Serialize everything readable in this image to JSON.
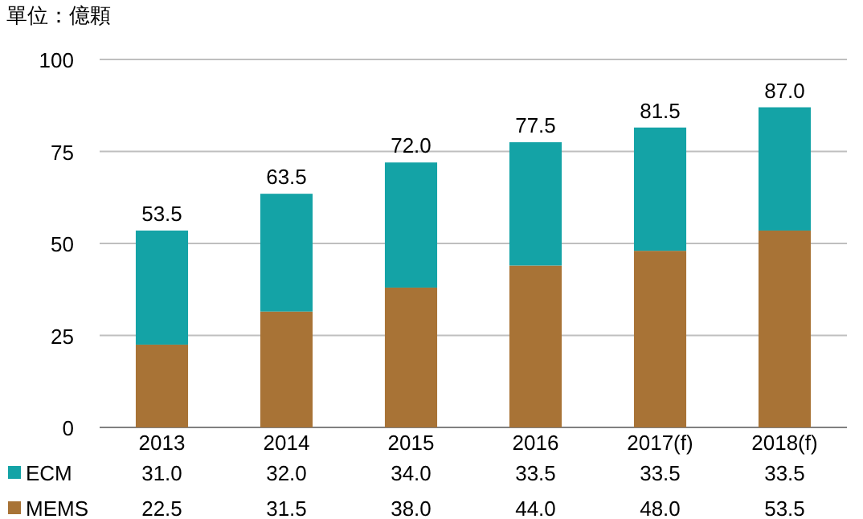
{
  "chart_data": {
    "type": "bar",
    "stacked": true,
    "ylabel": "單位：億顆",
    "categories": [
      "2013",
      "2014",
      "2015",
      "2016",
      "2017(f)",
      "2018(f)"
    ],
    "series": [
      {
        "name": "MEMS",
        "color": "#a87336",
        "values": [
          22.5,
          31.5,
          38.0,
          44.0,
          48.0,
          53.5
        ],
        "value_labels": [
          "22.5",
          "31.5",
          "38.0",
          "44.0",
          "48.0",
          "53.5"
        ]
      },
      {
        "name": "ECM",
        "color": "#14a3a6",
        "values": [
          31.0,
          32.0,
          34.0,
          33.5,
          33.5,
          33.5
        ],
        "value_labels": [
          "31.0",
          "32.0",
          "34.0",
          "33.5",
          "33.5",
          "33.5"
        ]
      }
    ],
    "ylim": [
      0,
      100
    ],
    "yticks": [
      0,
      25,
      50,
      75,
      100
    ],
    "grid": "y",
    "legend": "bottom",
    "totals": [
      "53.5",
      "63.5",
      "72.0",
      "77.5",
      "81.5",
      "87.0"
    ]
  }
}
